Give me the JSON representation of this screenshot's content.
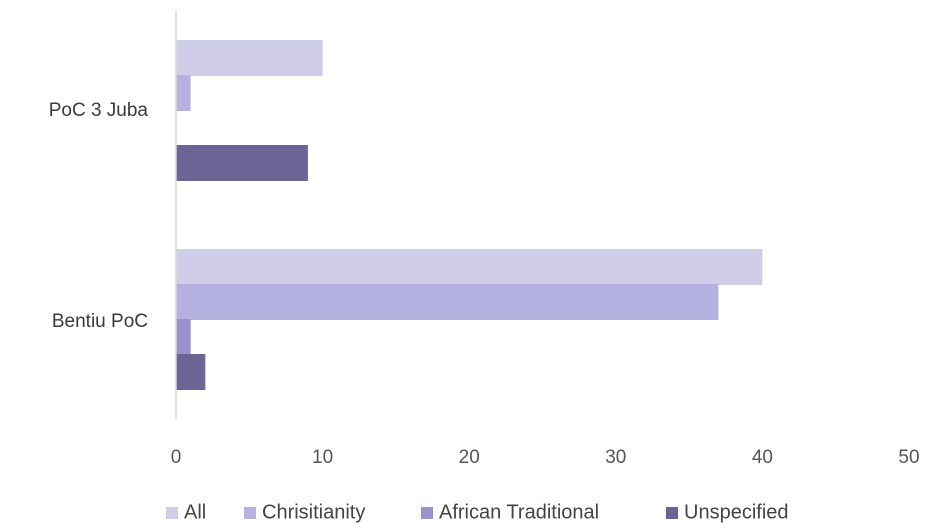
{
  "chart_data": {
    "type": "bar",
    "orientation": "horizontal",
    "categories": [
      "PoC 3 Juba",
      "Bentiu PoC"
    ],
    "series": [
      {
        "name": "All",
        "values": [
          10,
          40
        ],
        "color": "#cfcde8"
      },
      {
        "name": "Chrisitianity",
        "values": [
          1,
          37
        ],
        "color": "#b5b1e0"
      },
      {
        "name": "African Traditional",
        "values": [
          0,
          1
        ],
        "color": "#9892cd"
      },
      {
        "name": "Unspecified",
        "values": [
          9,
          2
        ],
        "color": "#6b6596"
      }
    ],
    "xlim": [
      0,
      50
    ],
    "xticks": [
      "0",
      "10",
      "20",
      "30",
      "40",
      "50"
    ],
    "grid": false,
    "legend": "bottom"
  }
}
